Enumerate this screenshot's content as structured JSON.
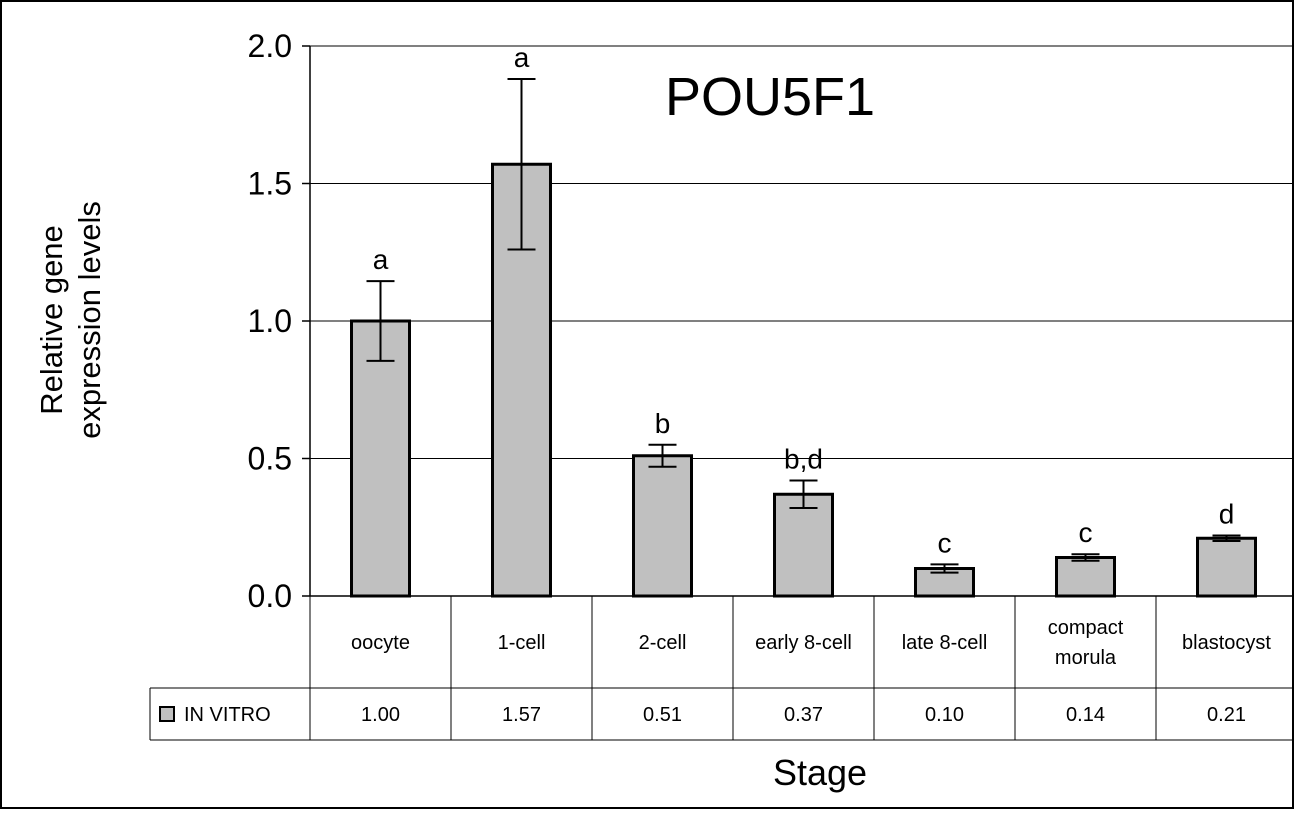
{
  "chart_data": {
    "type": "bar",
    "title": "POU5F1",
    "xlabel": "Stage",
    "ylabel": [
      "Relative gene",
      "expression levels"
    ],
    "ylim": [
      0,
      2.0
    ],
    "yticks": [
      "0.0",
      "0.5",
      "1.0",
      "1.5",
      "2.0"
    ],
    "grid": true,
    "categories": [
      "oocyte",
      "1-cell",
      "2-cell",
      "early 8-cell",
      "late 8-cell",
      "compact morula",
      "blastocyst"
    ],
    "category_lines": [
      [
        "oocyte"
      ],
      [
        "1-cell"
      ],
      [
        "2-cell"
      ],
      [
        "early 8-cell"
      ],
      [
        "late 8-cell"
      ],
      [
        "compact",
        "morula"
      ],
      [
        "blastocyst"
      ]
    ],
    "series": [
      {
        "name": "IN VITRO",
        "color": "#c0c0c0",
        "values": [
          1.0,
          1.57,
          0.51,
          0.37,
          0.1,
          0.14,
          0.21
        ],
        "value_labels": [
          "1.00",
          "1.57",
          "0.51",
          "0.37",
          "0.10",
          "0.14",
          "0.21"
        ],
        "error": [
          0.145,
          0.31,
          0.04,
          0.05,
          0.015,
          0.012,
          0.01
        ],
        "annotations": [
          "a",
          "a",
          "b",
          "b,d",
          "c",
          "c",
          "d"
        ]
      }
    ],
    "data_table": true
  }
}
